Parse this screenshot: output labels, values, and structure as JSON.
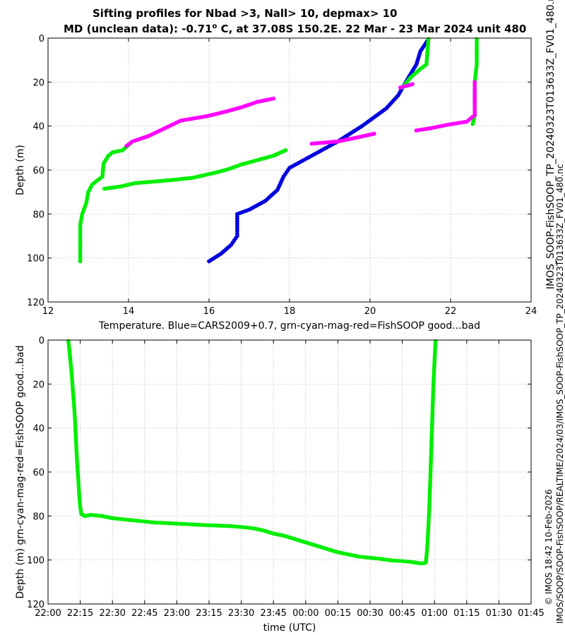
{
  "title_line1": "Sifting profiles for Nbad >3, Nall> 10, depmax> 10",
  "title_line2_prefix": "MD (unclean data): -0.71",
  "title_line2_sup": "o",
  "title_line2_suffix": " C, at 37.08S 150.2E. 22 Mar - 23 Mar 2024 unit 480",
  "right_side_text": "IMOS_SOOP-FishSOOP_TP_20240323T013633Z_FV01_480.nc",
  "right_side_text2": "IMOS/SOOP/SOOP-FishSOOP/REALTIME/2024/03/IMOS_SOOP-FishSOOP_TP_20240323T013633Z_FV01_480.nc",
  "right_side_text3": "© IMOS 18:42 10-Feb-2026",
  "colors": {
    "blue": "#0000dd",
    "green": "#00ee00",
    "magenta": "#ff00ff",
    "grid": "#b4b4b4"
  },
  "chart_data": [
    {
      "type": "scatter",
      "xlabel": "Temperature. Blue=CARS2009+0.7, grn-cyan-mag-red=FishSOOP good...bad",
      "ylabel": "Depth (m)",
      "xlim": [
        12,
        24
      ],
      "ylim": [
        0,
        120
      ],
      "y_reversed": true,
      "grid": true,
      "xticks": [
        "12",
        "14",
        "16",
        "18",
        "20",
        "22",
        "24"
      ],
      "yticks": [
        "0",
        "20",
        "40",
        "60",
        "80",
        "100",
        "120"
      ],
      "series": [
        {
          "name": "CARS2009+0.7",
          "color": "blue",
          "segments": [
            [
              [
                16.0,
                101.5
              ],
              [
                16.3,
                98
              ],
              [
                16.55,
                94
              ],
              [
                16.7,
                90
              ],
              [
                16.7,
                80
              ],
              [
                17.0,
                78
              ],
              [
                17.4,
                74
              ],
              [
                17.7,
                69
              ],
              [
                17.85,
                63
              ],
              [
                18.0,
                59
              ],
              [
                18.6,
                53
              ],
              [
                19.2,
                47
              ],
              [
                19.8,
                40
              ],
              [
                20.4,
                32
              ],
              [
                20.7,
                26
              ],
              [
                20.95,
                18
              ],
              [
                21.15,
                12
              ],
              [
                21.25,
                6
              ],
              [
                21.45,
                0.5
              ]
            ]
          ]
        },
        {
          "name": "FishSOOP good (green)",
          "color": "green",
          "segments": [
            [
              [
                12.8,
                101.5
              ],
              [
                12.8,
                92
              ],
              [
                12.8,
                85
              ],
              [
                12.85,
                80
              ],
              [
                12.95,
                75
              ],
              [
                13.0,
                70
              ],
              [
                13.1,
                66.5
              ],
              [
                13.35,
                63
              ],
              [
                13.38,
                57
              ],
              [
                13.5,
                53.5
              ]
            ],
            [
              [
                13.5,
                53.5
              ],
              [
                13.6,
                52
              ],
              [
                13.85,
                51
              ],
              [
                14.1,
                47
              ]
            ],
            [
              [
                13.4,
                68.5
              ],
              [
                13.8,
                67.5
              ],
              [
                14.15,
                66
              ],
              [
                15.1,
                64.5
              ],
              [
                15.6,
                63.5
              ],
              [
                16.2,
                61
              ],
              [
                16.5,
                59.5
              ],
              [
                16.8,
                57.5
              ],
              [
                17.2,
                55.5
              ],
              [
                17.6,
                53.5
              ],
              [
                17.9,
                51
              ]
            ],
            [
              [
                20.8,
                22.5
              ],
              [
                21.0,
                18
              ],
              [
                21.25,
                14
              ],
              [
                21.4,
                12
              ],
              [
                21.45,
                0.5
              ]
            ],
            [
              [
                22.65,
                0.5
              ],
              [
                22.65,
                12
              ],
              [
                22.6,
                20
              ],
              [
                22.6,
                35
              ],
              [
                22.55,
                39
              ]
            ]
          ]
        },
        {
          "name": "FishSOOP bad (magenta)",
          "color": "magenta",
          "segments": [
            [
              [
                13.95,
                49
              ],
              [
                14.1,
                47
              ],
              [
                14.5,
                44.5
              ],
              [
                15.3,
                37.5
              ],
              [
                15.95,
                35.5
              ],
              [
                16.4,
                33.5
              ],
              [
                16.8,
                31.5
              ],
              [
                17.2,
                29
              ],
              [
                17.6,
                27.5
              ]
            ],
            [
              [
                18.55,
                48
              ],
              [
                19.2,
                47
              ],
              [
                19.6,
                45.5
              ],
              [
                20.1,
                43.5
              ]
            ],
            [
              [
                20.75,
                22.5
              ],
              [
                21.05,
                21
              ]
            ],
            [
              [
                21.15,
                42
              ],
              [
                21.5,
                41
              ],
              [
                21.9,
                39.5
              ],
              [
                22.4,
                38
              ],
              [
                22.6,
                35
              ],
              [
                22.6,
                20
              ]
            ]
          ]
        }
      ]
    },
    {
      "type": "scatter",
      "xlabel": "time (UTC)",
      "ylabel": "Depth (m) grn-cyan-mag-red=FishSOOP good...bad",
      "xlim_minutes": [
        0,
        225
      ],
      "ylim": [
        0,
        120
      ],
      "y_reversed": true,
      "grid": true,
      "xticks": [
        "22:00",
        "22:15",
        "22:30",
        "22:45",
        "23:00",
        "23:15",
        "23:30",
        "23:45",
        "00:00",
        "00:15",
        "00:30",
        "00:45",
        "01:00",
        "01:15",
        "01:30",
        "01:45"
      ],
      "yticks": [
        "0",
        "20",
        "40",
        "60",
        "80",
        "100",
        "120"
      ],
      "series": [
        {
          "name": "FishSOOP good",
          "color": "green",
          "segments": [
            [
              [
                9.5,
                0.5
              ],
              [
                10,
                5
              ],
              [
                10.5,
                10
              ],
              [
                11,
                15
              ],
              [
                11.5,
                22
              ],
              [
                12,
                28
              ],
              [
                12.5,
                35
              ],
              [
                13,
                45
              ],
              [
                13.5,
                55
              ],
              [
                14,
                62
              ],
              [
                14.5,
                70
              ],
              [
                15,
                76
              ],
              [
                15.5,
                79
              ]
            ],
            [
              [
                15.5,
                79
              ],
              [
                17,
                80
              ],
              [
                20,
                79.5
              ],
              [
                25,
                80
              ],
              [
                30,
                81
              ],
              [
                35,
                81.5
              ],
              [
                40,
                82
              ],
              [
                45,
                82.5
              ],
              [
                50,
                83
              ],
              [
                55,
                83.2
              ],
              [
                60,
                83.5
              ],
              [
                65,
                83.7
              ],
              [
                70,
                84
              ],
              [
                75,
                84.2
              ],
              [
                80,
                84.4
              ],
              [
                85,
                84.6
              ],
              [
                90,
                85
              ],
              [
                95,
                85.5
              ],
              [
                100,
                86.5
              ],
              [
                105,
                88
              ],
              [
                110,
                89
              ],
              [
                115,
                90.5
              ],
              [
                120,
                92
              ],
              [
                125,
                93.5
              ],
              [
                130,
                95
              ],
              [
                135,
                96.5
              ],
              [
                140,
                97.5
              ],
              [
                145,
                98.5
              ],
              [
                150,
                99
              ],
              [
                155,
                99.5
              ],
              [
                160,
                100.2
              ],
              [
                165,
                100.5
              ],
              [
                170,
                101
              ],
              [
                173,
                101.5
              ],
              [
                175,
                101.5
              ],
              [
                176,
                101
              ]
            ],
            [
              [
                176,
                101
              ],
              [
                176.5,
                96
              ],
              [
                177,
                88
              ],
              [
                177.5,
                78
              ],
              [
                178,
                65
              ],
              [
                178.5,
                50
              ],
              [
                179,
                35
              ],
              [
                179.5,
                20
              ],
              [
                180,
                10
              ],
              [
                180.5,
                0.5
              ]
            ]
          ]
        }
      ]
    }
  ]
}
